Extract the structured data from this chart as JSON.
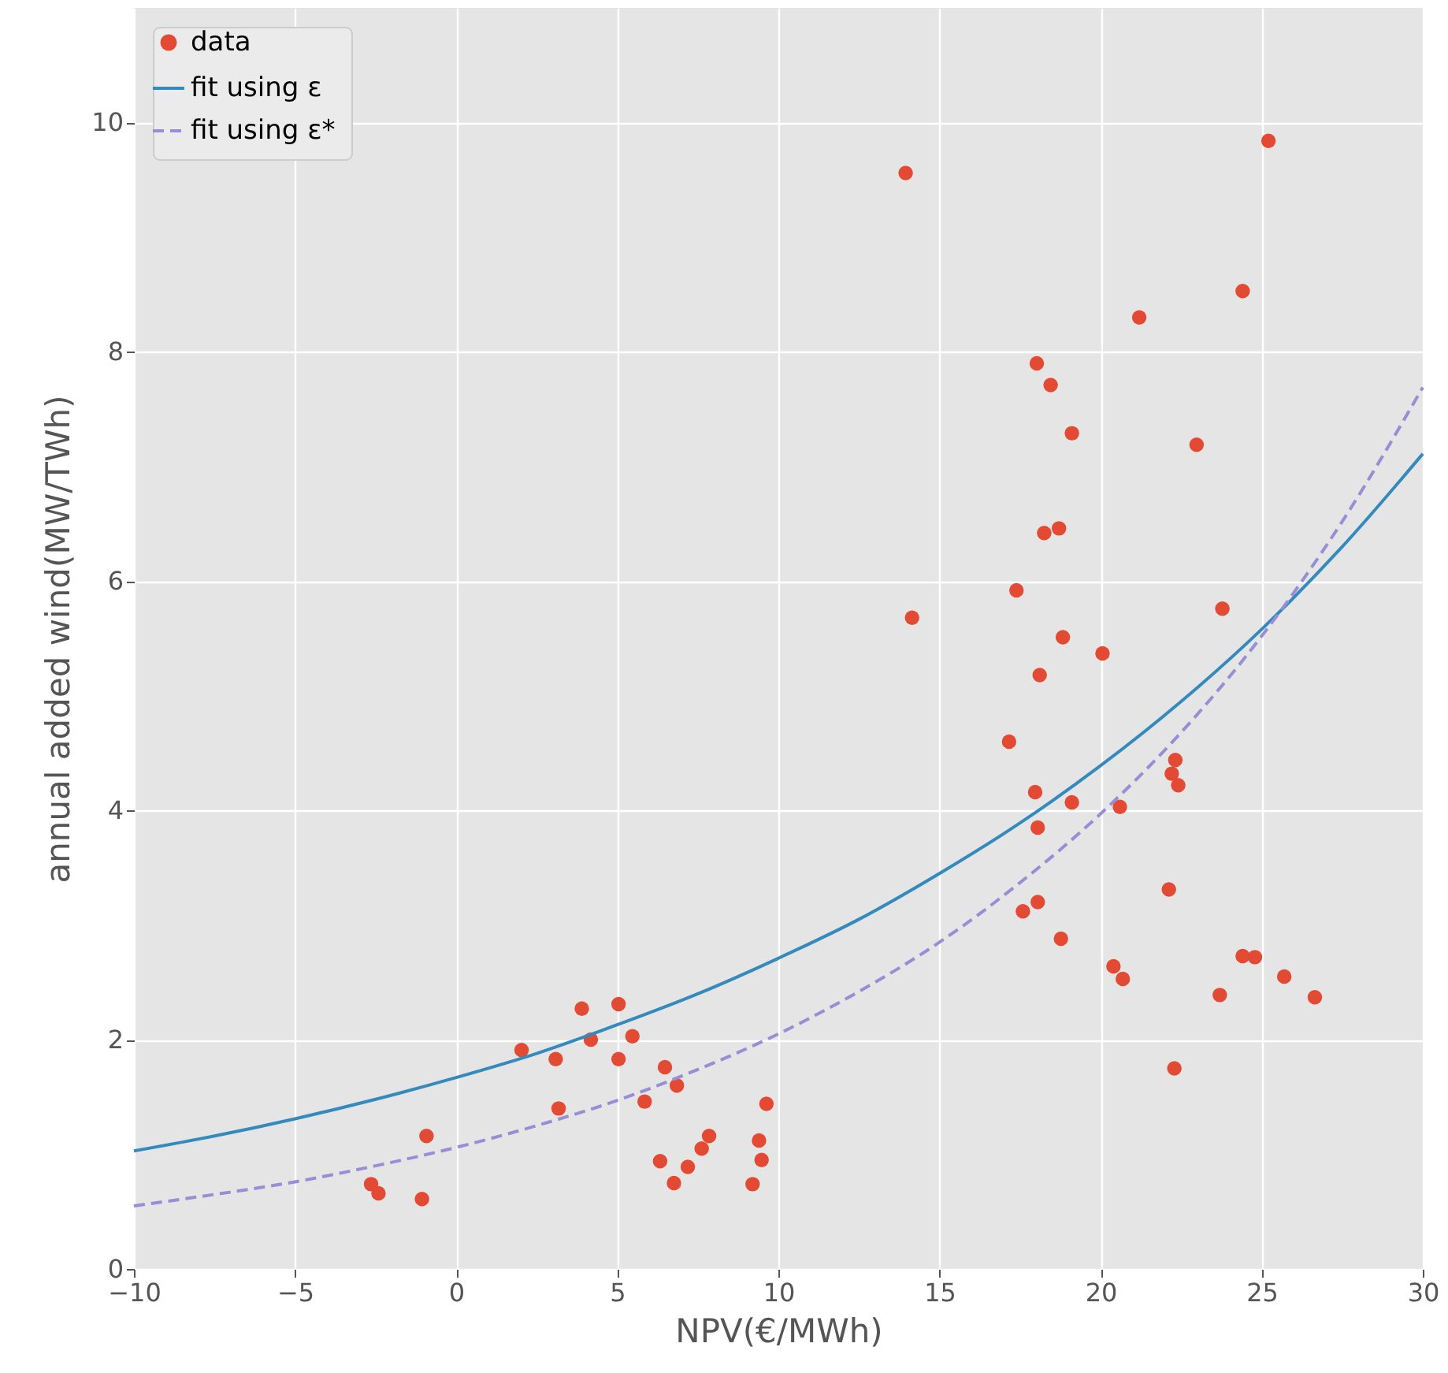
{
  "chart_data": {
    "type": "scatter",
    "xlabel": "NPV(€/MWh)",
    "ylabel": "annual added wind(MW/TWh)",
    "xlim": [
      -10,
      30
    ],
    "ylim": [
      0,
      11
    ],
    "xticks": [
      {
        "value": -10,
        "label": "−10"
      },
      {
        "value": -5,
        "label": "−5"
      },
      0,
      5,
      10,
      15,
      20,
      25,
      30
    ],
    "yticks": [
      0,
      2,
      4,
      6,
      8,
      10
    ],
    "grid": true,
    "legend": "top left",
    "series": [
      {
        "name": "data",
        "marker": "circle",
        "color": "#e24a33",
        "x": [
          -2.64,
          -2.41,
          -1.06,
          -0.92,
          2.03,
          3.09,
          3.18,
          3.9,
          4.18,
          5.04,
          5.04,
          5.47,
          5.85,
          6.33,
          6.48,
          6.76,
          6.85,
          7.19,
          7.62,
          7.85,
          9.2,
          9.4,
          9.48,
          9.63,
          13.95,
          14.15,
          17.16,
          17.39,
          17.59,
          17.97,
          18.02,
          18.05,
          18.05,
          18.11,
          18.25,
          18.45,
          18.71,
          18.77,
          18.83,
          19.11,
          19.11,
          20.06,
          20.4,
          20.6,
          20.69,
          21.2,
          22.12,
          22.21,
          22.29,
          22.32,
          22.41,
          22.98,
          23.7,
          23.78,
          24.41,
          24.41,
          24.79,
          25.21,
          25.7,
          26.65
        ],
        "values": [
          0.74,
          0.66,
          0.61,
          1.16,
          1.91,
          1.83,
          1.4,
          2.27,
          2.0,
          2.31,
          1.83,
          2.03,
          1.46,
          0.94,
          1.76,
          0.75,
          1.6,
          0.89,
          1.05,
          1.16,
          0.74,
          1.12,
          0.95,
          1.44,
          9.56,
          5.68,
          4.6,
          5.92,
          3.12,
          4.16,
          7.9,
          3.85,
          3.2,
          5.18,
          6.42,
          7.71,
          6.46,
          2.88,
          5.51,
          7.29,
          4.07,
          5.37,
          2.64,
          4.03,
          2.53,
          8.3,
          3.31,
          4.32,
          1.75,
          4.44,
          4.22,
          7.19,
          2.39,
          5.76,
          8.53,
          2.73,
          2.72,
          9.84,
          2.55,
          2.37
        ]
      },
      {
        "name": "fit using ε",
        "type": "line",
        "line_style": "solid",
        "color": "#348abd",
        "x": [
          -10,
          -7.5,
          -5,
          -2.5,
          0,
          2.5,
          5,
          7.5,
          10,
          12.5,
          15,
          17.5,
          20,
          22.5,
          25,
          27.5,
          30
        ],
        "values": [
          1.03,
          1.16,
          1.31,
          1.48,
          1.67,
          1.88,
          2.13,
          2.4,
          2.71,
          3.05,
          3.45,
          3.89,
          4.39,
          4.95,
          5.58,
          6.3,
          7.11
        ]
      },
      {
        "name": "fit using ε*",
        "type": "line",
        "line_style": "dashed",
        "color": "#988ed5",
        "x": [
          -10,
          -7.5,
          -5,
          -2.5,
          0,
          2.5,
          5,
          7.5,
          10,
          12.5,
          15,
          17.5,
          20,
          22.5,
          25,
          27.5,
          30
        ],
        "values": [
          0.55,
          0.65,
          0.76,
          0.9,
          1.06,
          1.25,
          1.47,
          1.74,
          2.05,
          2.42,
          2.85,
          3.37,
          3.97,
          4.68,
          5.52,
          6.52,
          7.69
        ]
      }
    ]
  }
}
